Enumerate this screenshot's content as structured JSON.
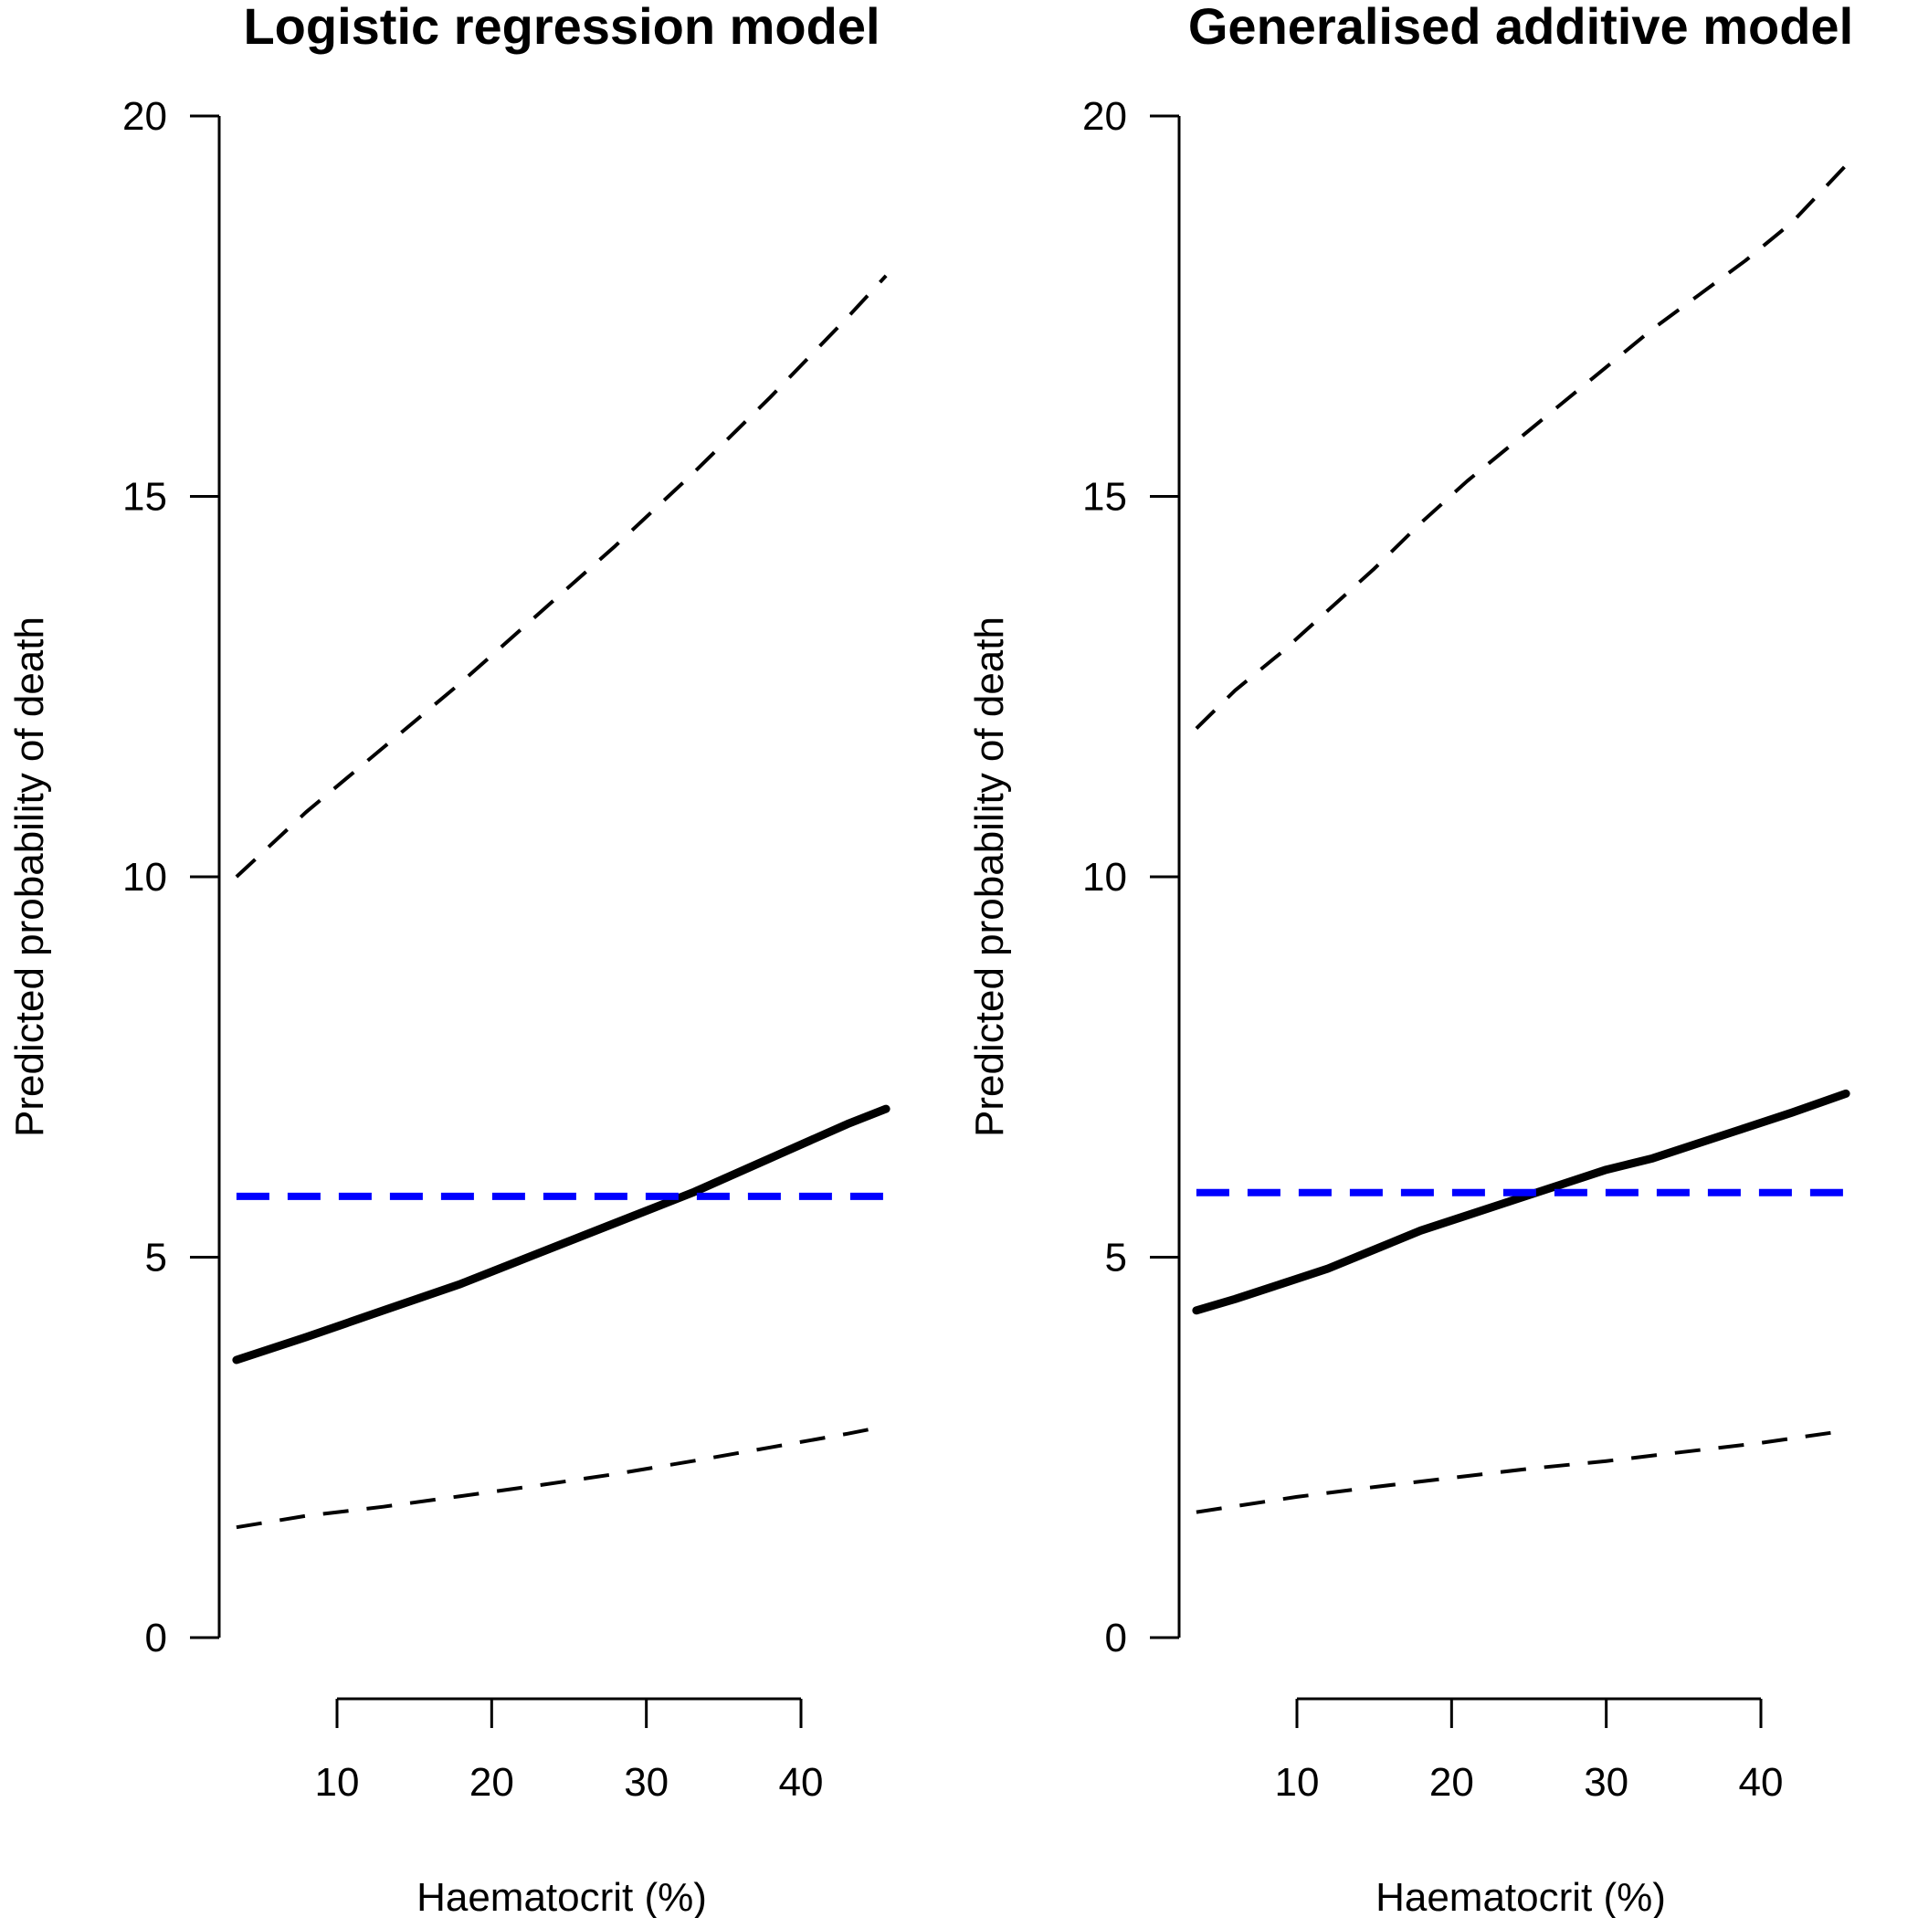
{
  "chart_data": [
    {
      "type": "line",
      "title": "Logistic regression model",
      "xlabel": "Haematocrit (%)",
      "ylabel": "Predicted probability of death",
      "xlim": [
        5,
        45
      ],
      "ylim": [
        0,
        20
      ],
      "xticks": [
        "10",
        "20",
        "30",
        "40"
      ],
      "yticks": [
        "0",
        "5",
        "10",
        "15",
        "20"
      ],
      "series": [
        {
          "role": "estimate",
          "color": "#000000",
          "style": "solid",
          "x": [
            3.5,
            8,
            13,
            18,
            23,
            28,
            33,
            38,
            43,
            45.5
          ],
          "y": [
            3.65,
            3.95,
            4.3,
            4.65,
            5.05,
            5.45,
            5.85,
            6.3,
            6.75,
            6.95
          ]
        },
        {
          "role": "upper-ci",
          "color": "#000000",
          "style": "dashed",
          "x": [
            3.5,
            8,
            13,
            18,
            23,
            28,
            33,
            38,
            43,
            45.5
          ],
          "y": [
            10.0,
            10.85,
            11.7,
            12.55,
            13.45,
            14.35,
            15.3,
            16.3,
            17.35,
            17.9
          ]
        },
        {
          "role": "lower-ci",
          "color": "#000000",
          "style": "dashed",
          "x": [
            3.5,
            8,
            13,
            18,
            23,
            28,
            33,
            38,
            43,
            45.5
          ],
          "y": [
            1.45,
            1.6,
            1.72,
            1.86,
            2.0,
            2.15,
            2.32,
            2.5,
            2.68,
            2.78
          ]
        },
        {
          "role": "reference",
          "color": "#0000ff",
          "style": "dashed",
          "x": [
            3.5,
            45.5
          ],
          "y": [
            5.8,
            5.8
          ]
        }
      ]
    },
    {
      "type": "line",
      "title": "Generalised additive model",
      "xlabel": "Haematocrit (%)",
      "ylabel": "Predicted probability of death",
      "xlim": [
        5,
        45
      ],
      "ylim": [
        0,
        20
      ],
      "xticks": [
        "10",
        "20",
        "30",
        "40"
      ],
      "yticks": [
        "0",
        "5",
        "10",
        "15",
        "20"
      ],
      "series": [
        {
          "role": "estimate",
          "color": "#000000",
          "style": "solid",
          "x": [
            3.5,
            6,
            9,
            12,
            15,
            18,
            21,
            24,
            27,
            30,
            33,
            36,
            39,
            42,
            45.5
          ],
          "y": [
            4.3,
            4.45,
            4.65,
            4.85,
            5.1,
            5.35,
            5.55,
            5.75,
            5.95,
            6.15,
            6.3,
            6.5,
            6.7,
            6.9,
            7.15
          ]
        },
        {
          "role": "upper-ci",
          "color": "#000000",
          "style": "dashed",
          "x": [
            3.5,
            6,
            9,
            12,
            15,
            18,
            21,
            24,
            27,
            30,
            33,
            36,
            39,
            42,
            45.5
          ],
          "y": [
            11.95,
            12.45,
            12.95,
            13.5,
            14.05,
            14.65,
            15.2,
            15.7,
            16.2,
            16.7,
            17.2,
            17.65,
            18.1,
            18.6,
            19.35
          ]
        },
        {
          "role": "lower-ci",
          "color": "#000000",
          "style": "dashed",
          "x": [
            3.5,
            10,
            15,
            20,
            25,
            30,
            35,
            40,
            45.5
          ],
          "y": [
            1.65,
            1.85,
            1.98,
            2.1,
            2.22,
            2.32,
            2.44,
            2.56,
            2.72
          ]
        },
        {
          "role": "reference",
          "color": "#0000ff",
          "style": "dashed",
          "x": [
            3.5,
            45.5
          ],
          "y": [
            5.85,
            5.85
          ]
        }
      ]
    }
  ]
}
